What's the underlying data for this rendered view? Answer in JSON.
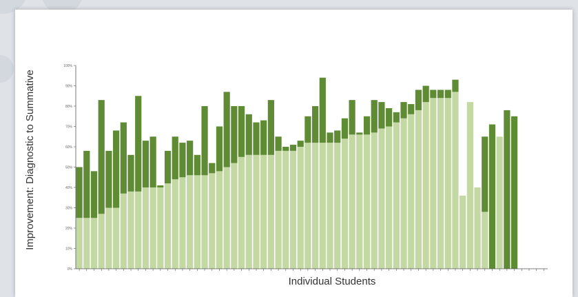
{
  "colors": {
    "diagnostic": "#c3d8a2",
    "improvement": "#5e8b33",
    "axis": "#555555",
    "background": "#dfe3e8"
  },
  "chart_data": {
    "type": "bar",
    "stacked": true,
    "xlabel": "Individual Students",
    "ylabel": "Improvement: Diagnostic to Summative",
    "ylim": [
      0,
      100
    ],
    "yticks": [
      "0%",
      "10%",
      "20%",
      "30%",
      "40%",
      "50%",
      "60%",
      "70%",
      "80%",
      "90%",
      "100%"
    ],
    "grid": false,
    "legend": "none",
    "x": [
      1,
      2,
      3,
      4,
      5,
      6,
      7,
      8,
      9,
      10,
      11,
      12,
      13,
      14,
      15,
      16,
      17,
      18,
      19,
      20,
      21,
      22,
      23,
      24,
      25,
      26,
      27,
      28,
      29,
      30,
      31,
      32,
      33,
      34,
      35,
      36,
      37,
      38,
      39,
      40,
      41,
      42,
      43,
      44,
      45,
      46,
      47,
      48,
      49,
      50,
      51,
      52,
      53,
      54,
      55,
      56,
      57,
      58,
      59,
      60,
      61,
      62,
      63,
      64
    ],
    "series": [
      {
        "values": [
          25,
          25,
          25,
          27,
          30,
          30,
          37,
          38,
          38,
          40,
          40,
          40,
          42,
          44,
          45,
          46,
          46,
          46,
          47,
          48,
          50,
          52,
          55,
          56,
          56,
          56,
          56,
          58,
          58,
          58,
          60,
          62,
          62,
          62,
          62,
          62,
          64,
          66,
          66,
          66,
          67,
          69,
          70,
          72,
          74,
          76,
          78,
          82,
          84,
          84,
          84,
          87,
          36,
          82,
          40,
          28,
          71,
          65,
          78,
          75,
          0,
          0,
          0,
          0
        ],
        "light_on_top": [
          false,
          false,
          false,
          false,
          false,
          false,
          false,
          false,
          false,
          false,
          false,
          false,
          false,
          false,
          false,
          false,
          false,
          false,
          false,
          false,
          false,
          false,
          false,
          false,
          false,
          false,
          false,
          false,
          false,
          false,
          false,
          false,
          false,
          false,
          false,
          false,
          false,
          false,
          false,
          false,
          false,
          false,
          false,
          false,
          false,
          false,
          false,
          false,
          false,
          false,
          false,
          false,
          false,
          false,
          false,
          false,
          true,
          false,
          true,
          true,
          false,
          false,
          false,
          false
        ]
      },
      {
        "values": [
          25,
          33,
          23,
          56,
          28,
          38,
          35,
          18,
          47,
          23,
          25,
          1,
          16,
          21,
          17,
          17,
          10,
          34,
          5,
          22,
          37,
          28,
          25,
          20,
          16,
          17,
          27,
          7,
          2,
          3,
          3,
          13,
          18,
          32,
          5,
          6,
          10,
          17,
          1,
          9,
          16,
          13,
          9,
          5,
          8,
          5,
          10,
          8,
          4,
          4,
          4,
          6,
          0,
          0,
          0,
          37,
          0,
          0,
          0,
          0,
          0,
          0,
          0,
          0
        ]
      }
    ]
  }
}
